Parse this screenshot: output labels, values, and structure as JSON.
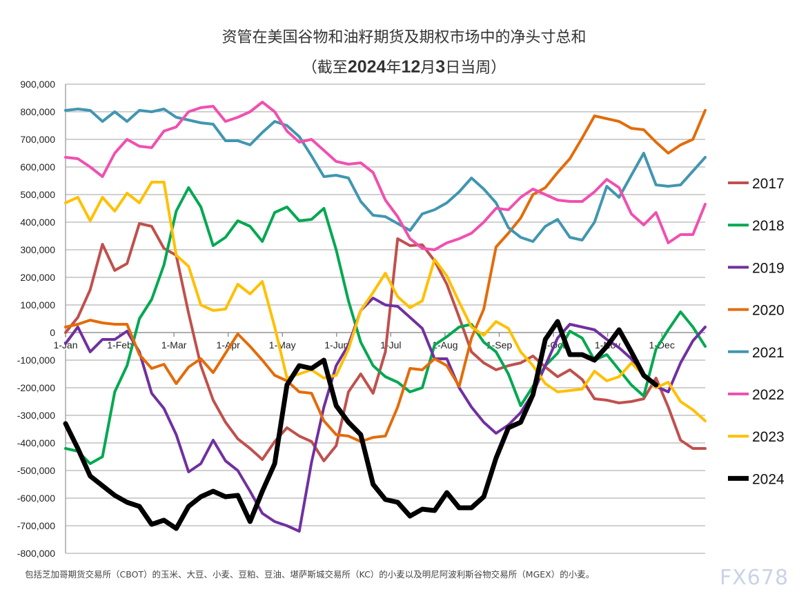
{
  "chart_data": {
    "type": "line",
    "title": "资管在美国谷物和油籽期货及期权市场中的净头寸总和",
    "subtitle_prefix": "（截至",
    "subtitle_year": "2024",
    "subtitle_y": "年",
    "subtitle_month": "12",
    "subtitle_m": "月",
    "subtitle_day": "3",
    "subtitle_suffix": "日当周）",
    "xlabel": "",
    "ylabel": "",
    "x_tick_labels": [
      "1-Jan",
      "1-Feb",
      "1-Mar",
      "1-Apr",
      "1-May",
      "1-Jun",
      "1-Jul",
      "1-Aug",
      "1-Sep",
      "1-Oct",
      "1-Nov",
      "1-Dec"
    ],
    "y_tick_labels": [
      "900,000",
      "800,000",
      "700,000",
      "600,000",
      "500,000",
      "400,000",
      "300,000",
      "200,000",
      "100,000",
      "0",
      "-100,000",
      "-200,000",
      "-300,000",
      "-400,000",
      "-500,000",
      "-600,000",
      "-700,000",
      "-800,000"
    ],
    "ylim": [
      -800000,
      900000
    ],
    "x_unit": "weekly, week of year (week 0 = 1-Jan)",
    "grid": true,
    "legend_position": "right",
    "series": [
      {
        "name": "2017",
        "color": "#c0504d",
        "values": [
          0,
          55000,
          155000,
          320000,
          225000,
          250000,
          395000,
          385000,
          305000,
          280000,
          70000,
          -120000,
          -245000,
          -325000,
          -385000,
          -420000,
          -460000,
          -395000,
          -345000,
          -375000,
          -395000,
          -465000,
          -410000,
          -215000,
          -150000,
          -220000,
          -70000,
          340000,
          315000,
          318000,
          260000,
          175000,
          55000,
          -70000,
          -110000,
          -135000,
          -120000,
          -110000,
          -85000,
          -125000,
          -160000,
          -135000,
          -170000,
          -240000,
          -245000,
          -255000,
          -250000,
          -240000,
          -165000,
          -270000,
          -390000,
          -420000,
          -420000
        ]
      },
      {
        "name": "2018",
        "color": "#00a850",
        "values": [
          -420000,
          -430000,
          -475000,
          -450000,
          -215000,
          -120000,
          50000,
          120000,
          245000,
          440000,
          525000,
          455000,
          315000,
          345000,
          405000,
          385000,
          330000,
          435000,
          455000,
          405000,
          410000,
          450000,
          300000,
          115000,
          -35000,
          -120000,
          -160000,
          -180000,
          -215000,
          -200000,
          -45000,
          -15000,
          20000,
          30000,
          -35000,
          -70000,
          -150000,
          -265000,
          -195000,
          -120000,
          -75000,
          5000,
          -20000,
          -100000,
          -80000,
          -135000,
          -190000,
          -230000,
          -60000,
          10000,
          75000,
          20000,
          -50000
        ]
      },
      {
        "name": "2019",
        "color": "#7030a0",
        "values": [
          -40000,
          20000,
          -70000,
          -25000,
          -25000,
          5000,
          -70000,
          -220000,
          -275000,
          -370000,
          -505000,
          -475000,
          -390000,
          -465000,
          -500000,
          -575000,
          -655000,
          -685000,
          -700000,
          -720000,
          -470000,
          -270000,
          -120000,
          -45000,
          80000,
          125000,
          100000,
          95000,
          55000,
          15000,
          -95000,
          -95000,
          -200000,
          -270000,
          -325000,
          -365000,
          -335000,
          -290000,
          -220000,
          -120000,
          -20000,
          30000,
          20000,
          10000,
          -25000,
          -55000,
          -95000,
          -160000,
          -195000,
          -215000,
          -110000,
          -30000,
          20000
        ]
      },
      {
        "name": "2020",
        "color": "#e36c0a",
        "values": [
          20000,
          30000,
          45000,
          35000,
          30000,
          30000,
          -80000,
          -130000,
          -115000,
          -185000,
          -125000,
          -95000,
          -145000,
          -75000,
          -5000,
          -50000,
          -100000,
          -155000,
          -175000,
          -215000,
          -220000,
          -320000,
          -370000,
          -375000,
          -395000,
          -380000,
          -375000,
          -270000,
          -130000,
          -135000,
          -95000,
          -120000,
          -195000,
          -20000,
          85000,
          310000,
          360000,
          415000,
          500000,
          525000,
          580000,
          630000,
          705000,
          785000,
          775000,
          765000,
          740000,
          735000,
          690000,
          650000,
          680000,
          700000,
          805000
        ]
      },
      {
        "name": "2021",
        "color": "#4196b0",
        "values": [
          805000,
          810000,
          805000,
          765000,
          800000,
          765000,
          805000,
          800000,
          810000,
          780000,
          770000,
          760000,
          755000,
          695000,
          695000,
          680000,
          725000,
          765000,
          750000,
          710000,
          640000,
          565000,
          570000,
          560000,
          475000,
          425000,
          420000,
          395000,
          370000,
          430000,
          445000,
          470000,
          510000,
          560000,
          520000,
          470000,
          380000,
          345000,
          330000,
          385000,
          410000,
          345000,
          335000,
          400000,
          530000,
          490000,
          570000,
          650000,
          535000,
          530000,
          535000,
          585000,
          635000
        ]
      },
      {
        "name": "2022",
        "color": "#f050b0",
        "values": [
          635000,
          630000,
          600000,
          565000,
          650000,
          700000,
          675000,
          670000,
          730000,
          745000,
          800000,
          815000,
          820000,
          765000,
          780000,
          800000,
          835000,
          800000,
          730000,
          690000,
          700000,
          660000,
          620000,
          610000,
          615000,
          580000,
          480000,
          420000,
          340000,
          305000,
          300000,
          325000,
          340000,
          360000,
          400000,
          450000,
          445000,
          490000,
          520000,
          500000,
          480000,
          475000,
          475000,
          510000,
          555000,
          525000,
          430000,
          390000,
          435000,
          325000,
          355000,
          355000,
          465000
        ]
      },
      {
        "name": "2023",
        "color": "#ffc000",
        "values": [
          470000,
          490000,
          405000,
          490000,
          440000,
          505000,
          470000,
          545000,
          545000,
          280000,
          240000,
          100000,
          80000,
          85000,
          175000,
          140000,
          185000,
          20000,
          -165000,
          -150000,
          -135000,
          -165000,
          -155000,
          -60000,
          80000,
          145000,
          215000,
          130000,
          90000,
          115000,
          265000,
          205000,
          110000,
          20000,
          -10000,
          40000,
          15000,
          -70000,
          -120000,
          -185000,
          -215000,
          -210000,
          -205000,
          -140000,
          -175000,
          -160000,
          -110000,
          -155000,
          -200000,
          -180000,
          -250000,
          -280000,
          -320000
        ]
      },
      {
        "name": "2024",
        "color": "#000000",
        "values": [
          -330000,
          -420000,
          -520000,
          -555000,
          -590000,
          -615000,
          -630000,
          -695000,
          -680000,
          -710000,
          -630000,
          -595000,
          -575000,
          -595000,
          -590000,
          -685000,
          -575000,
          -475000,
          -190000,
          -120000,
          -130000,
          -100000,
          -265000,
          -325000,
          -370000,
          -550000,
          -605000,
          -615000,
          -665000,
          -640000,
          -645000,
          -580000,
          -635000,
          -635000,
          -595000,
          -455000,
          -345000,
          -325000,
          -225000,
          -25000,
          40000,
          -80000,
          -80000,
          -100000,
          -50000,
          10000,
          -70000,
          -155000,
          -190000
        ]
      }
    ],
    "footnote": "包括芝加哥期货交易所（CBOT）的玉米、大豆、小麦、豆粕、豆油、堪萨斯城交易所（KC）的小麦以及明尼阿波利斯谷物交易所（MGEX）的小麦。"
  },
  "logo_text": "FX678"
}
